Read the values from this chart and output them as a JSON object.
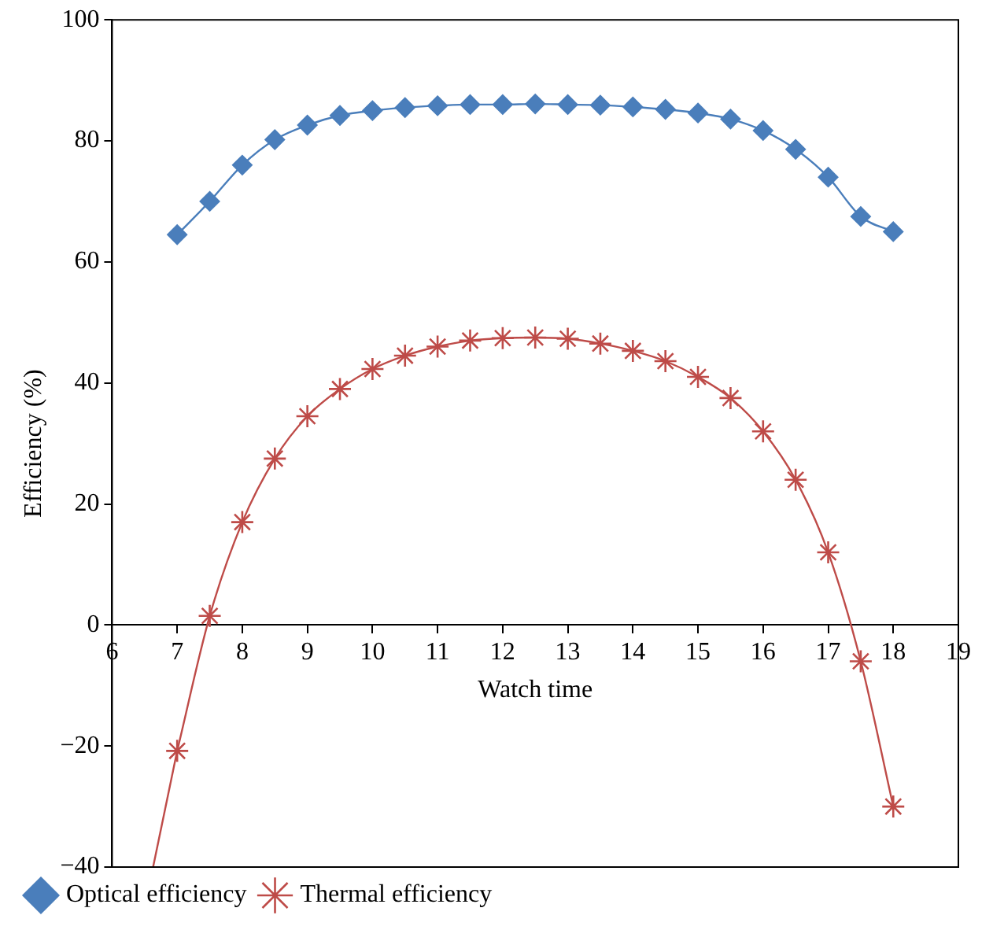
{
  "chart_data": {
    "type": "line",
    "xlabel": "Watch time",
    "ylabel": "Efficiency (%)",
    "x": [
      7,
      7.5,
      8,
      8.5,
      9,
      9.5,
      10,
      10.5,
      11,
      11.5,
      12,
      12.5,
      13,
      13.5,
      14,
      14.5,
      15,
      15.5,
      16,
      16.5,
      17,
      17.5,
      18
    ],
    "xlim": [
      6,
      19
    ],
    "xticks": [
      6,
      7,
      8,
      9,
      10,
      11,
      12,
      13,
      14,
      15,
      16,
      17,
      18,
      19
    ],
    "ylim": [
      -40,
      100
    ],
    "yticks": [
      -40,
      -20,
      0,
      20,
      40,
      60,
      80,
      100
    ],
    "grid": false,
    "legend": "bottom left",
    "line_style": "solid",
    "series": [
      {
        "name": "Optical efficiency",
        "color": "#4a7ebb",
        "marker": "diamond",
        "values": [
          64.5,
          70,
          76,
          80.2,
          82.6,
          84.2,
          85,
          85.5,
          85.8,
          86,
          86,
          86.1,
          86,
          85.9,
          85.6,
          85.2,
          84.6,
          83.6,
          81.7,
          78.6,
          74,
          67.5,
          65
        ]
      },
      {
        "name": "Thermal efficiency",
        "color": "#be4b48",
        "marker": "cross",
        "values": [
          -20.8,
          1.5,
          17,
          27.5,
          34.5,
          39,
          42.3,
          44.5,
          46,
          47,
          47.4,
          47.5,
          47.3,
          46.5,
          45.3,
          43.6,
          41,
          37.5,
          32,
          24,
          12,
          -6,
          -30
        ]
      },
      {
        "type": "line",
        "color": "#be4b48",
        "marker": "none",
        "x": [
          6.63,
          7
        ],
        "values": [
          -40,
          -20.8
        ]
      }
    ]
  }
}
